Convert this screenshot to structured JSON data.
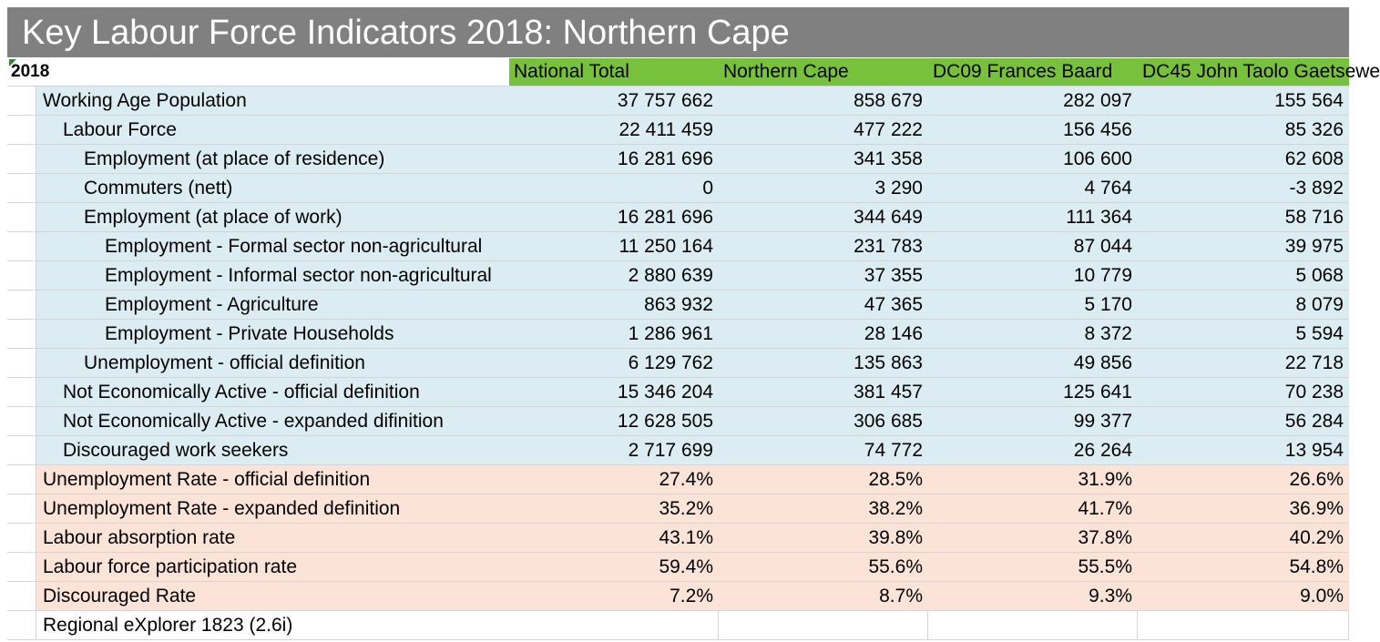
{
  "title": "Key Labour Force Indicators 2018: Northern Cape",
  "year_label": "2018",
  "columns": [
    "National Total",
    "Northern Cape",
    "DC09 Frances Baard",
    "DC45 John Taolo Gaetsewe"
  ],
  "rows": [
    {
      "label": "Working Age Population",
      "values": [
        "37 757 662",
        "858 679",
        "282 097",
        "155 564"
      ]
    },
    {
      "label": "Labour Force",
      "values": [
        "22 411 459",
        "477 222",
        "156 456",
        "85 326"
      ]
    },
    {
      "label": "Employment (at place of residence)",
      "values": [
        "16 281 696",
        "341 358",
        "106 600",
        "62 608"
      ]
    },
    {
      "label": "Commuters (nett)",
      "values": [
        "0",
        "3 290",
        "4 764",
        "-3 892"
      ]
    },
    {
      "label": "Employment (at place of work)",
      "values": [
        "16 281 696",
        "344 649",
        "111 364",
        "58 716"
      ]
    },
    {
      "label": "Employment - Formal sector non-agricultural",
      "values": [
        "11 250 164",
        "231 783",
        "87 044",
        "39 975"
      ]
    },
    {
      "label": "Employment - Informal sector non-agricultural",
      "values": [
        "2 880 639",
        "37 355",
        "10 779",
        "5 068"
      ]
    },
    {
      "label": "Employment - Agriculture",
      "values": [
        "863 932",
        "47 365",
        "5 170",
        "8 079"
      ]
    },
    {
      "label": "Employment - Private Households",
      "values": [
        "1 286 961",
        "28 146",
        "8 372",
        "5 594"
      ]
    },
    {
      "label": "Unemployment - official definition",
      "values": [
        "6 129 762",
        "135 863",
        "49 856",
        "22 718"
      ]
    },
    {
      "label": "Not Economically Active - official definition",
      "values": [
        "15 346 204",
        "381 457",
        "125 641",
        "70 238"
      ]
    },
    {
      "label": "Not Economically Active - expanded difinition",
      "values": [
        "12 628 505",
        "306 685",
        "99 377",
        "56 284"
      ]
    },
    {
      "label": "Discouraged work seekers",
      "values": [
        "2 717 699",
        "74 772",
        "26 264",
        "13 954"
      ]
    },
    {
      "label": "Unemployment Rate - official definition",
      "values": [
        "27.4%",
        "28.5%",
        "31.9%",
        "26.6%"
      ]
    },
    {
      "label": "Unemployment Rate - expanded definition",
      "values": [
        "35.2%",
        "38.2%",
        "41.7%",
        "36.9%"
      ]
    },
    {
      "label": "Labour absorption rate",
      "values": [
        "43.1%",
        "39.8%",
        "37.8%",
        "40.2%"
      ]
    },
    {
      "label": "Labour force participation rate",
      "values": [
        "59.4%",
        "55.6%",
        "55.5%",
        "54.8%"
      ]
    },
    {
      "label": "Discouraged Rate",
      "values": [
        "7.2%",
        "8.7%",
        "9.3%",
        "9.0%"
      ]
    }
  ],
  "footer": "Regional eXplorer 1823 (2.6i)",
  "colors": {
    "title_bg": "#808080",
    "header_bg": "#77c13c",
    "count_bg": "#dbedf2",
    "rate_bg": "#fbe4d7"
  }
}
